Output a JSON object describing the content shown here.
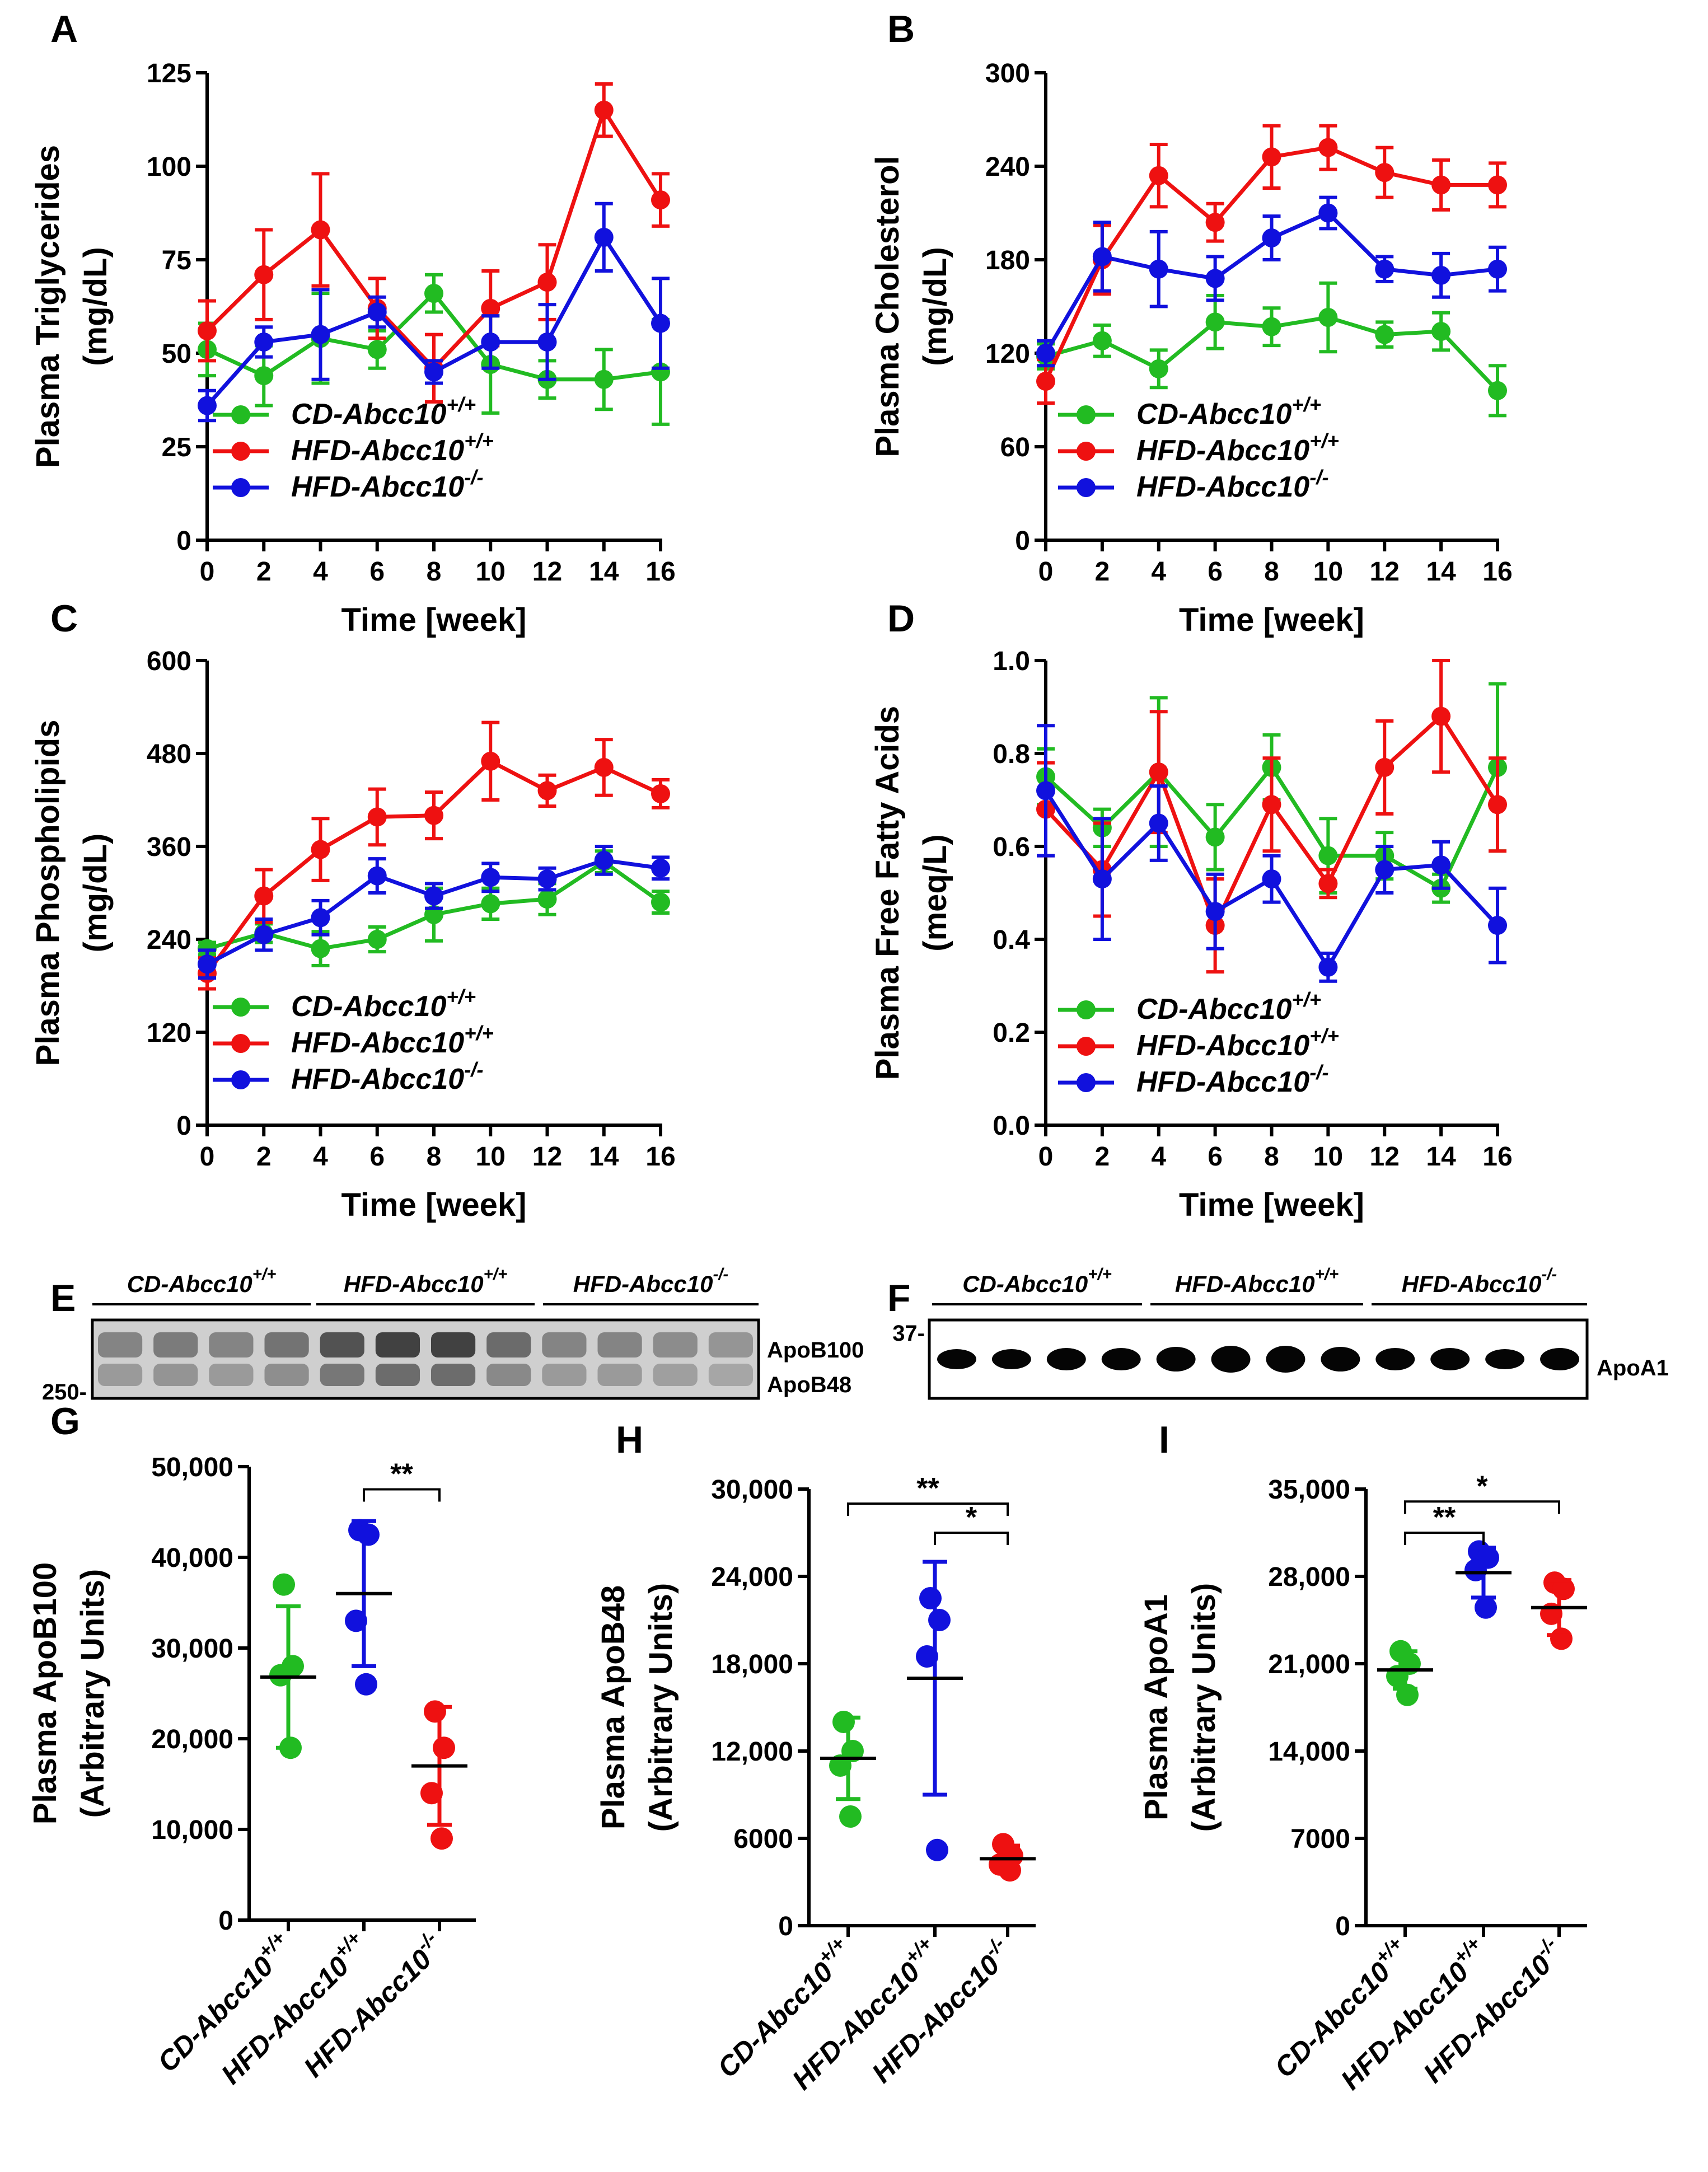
{
  "colors": {
    "green": "#22bb22",
    "red": "#ee1111",
    "blue": "#1111dd",
    "axis": "#000000"
  },
  "chart_data": [
    {
      "panel": "A",
      "type": "line",
      "xlabel": "Time [week]",
      "ylabel": [
        "Plasma Triglycerides",
        "(mg/dL)"
      ],
      "x": [
        0,
        2,
        4,
        6,
        8,
        10,
        12,
        14,
        16
      ],
      "xticks": [
        "0",
        "2",
        "4",
        "6",
        "8",
        "10",
        "12",
        "14",
        "16"
      ],
      "ylim": [
        0,
        125
      ],
      "yticks": [
        {
          "v": 0,
          "t": "0"
        },
        {
          "v": 25,
          "t": "25"
        },
        {
          "v": 50,
          "t": "50"
        },
        {
          "v": 75,
          "t": "75"
        },
        {
          "v": 100,
          "t": "100"
        },
        {
          "v": 125,
          "t": "125"
        }
      ],
      "series": [
        {
          "name": "CD-Abcc10",
          "sup": "+/+",
          "color": "green",
          "values": [
            51,
            44,
            54,
            51,
            66,
            47,
            43,
            43,
            45
          ],
          "err": [
            7,
            8,
            12,
            5,
            5,
            13,
            5,
            8,
            14
          ]
        },
        {
          "name": "HFD-Abcc10",
          "sup": "+/+",
          "color": "red",
          "values": [
            56,
            71,
            83,
            62,
            46,
            62,
            69,
            115,
            91
          ],
          "err": [
            8,
            12,
            15,
            8,
            9,
            10,
            10,
            7,
            7
          ]
        },
        {
          "name": "HFD-Abcc10",
          "sup": "-/-",
          "color": "blue",
          "values": [
            36,
            53,
            55,
            61,
            45,
            53,
            53,
            81,
            58
          ],
          "err": [
            4,
            4,
            12,
            4,
            3,
            7,
            10,
            9,
            12
          ]
        }
      ]
    },
    {
      "panel": "B",
      "type": "line",
      "xlabel": "Time [week]",
      "ylabel": [
        "Plasma Cholesterol",
        "(mg/dL)"
      ],
      "x": [
        0,
        2,
        4,
        6,
        8,
        10,
        12,
        14,
        16
      ],
      "xticks": [
        "0",
        "2",
        "4",
        "6",
        "8",
        "10",
        "12",
        "14",
        "16"
      ],
      "ylim": [
        0,
        300
      ],
      "yticks": [
        {
          "v": 0,
          "t": "0"
        },
        {
          "v": 60,
          "t": "60"
        },
        {
          "v": 120,
          "t": "120"
        },
        {
          "v": 180,
          "t": "180"
        },
        {
          "v": 240,
          "t": "240"
        },
        {
          "v": 300,
          "t": "300"
        }
      ],
      "series": [
        {
          "name": "CD-Abcc10",
          "sup": "+/+",
          "color": "green",
          "values": [
            118,
            128,
            110,
            140,
            137,
            143,
            132,
            134,
            96
          ],
          "err": [
            8,
            10,
            12,
            17,
            12,
            22,
            8,
            12,
            16
          ]
        },
        {
          "name": "HFD-Abcc10",
          "sup": "+/+",
          "color": "red",
          "values": [
            102,
            180,
            234,
            204,
            246,
            252,
            236,
            228,
            228
          ],
          "err": [
            14,
            22,
            20,
            12,
            20,
            14,
            16,
            16,
            14
          ]
        },
        {
          "name": "HFD-Abcc10",
          "sup": "-/-",
          "color": "blue",
          "values": [
            120,
            182,
            174,
            168,
            194,
            210,
            174,
            170,
            174
          ],
          "err": [
            8,
            22,
            24,
            14,
            14,
            10,
            8,
            14,
            14
          ]
        }
      ]
    },
    {
      "panel": "C",
      "type": "line",
      "xlabel": "Time [week]",
      "ylabel": [
        "Plasma Phospholipids",
        "(mg/dL)"
      ],
      "x": [
        0,
        2,
        4,
        6,
        8,
        10,
        12,
        14,
        16
      ],
      "xticks": [
        "0",
        "2",
        "4",
        "6",
        "8",
        "10",
        "12",
        "14",
        "16"
      ],
      "ylim": [
        0,
        600
      ],
      "yticks": [
        {
          "v": 0,
          "t": "0"
        },
        {
          "v": 120,
          "t": "120"
        },
        {
          "v": 240,
          "t": "240"
        },
        {
          "v": 360,
          "t": "360"
        },
        {
          "v": 480,
          "t": "480"
        },
        {
          "v": 600,
          "t": "600"
        }
      ],
      "series": [
        {
          "name": "CD-Abcc10",
          "sup": "+/+",
          "color": "green",
          "values": [
            228,
            248,
            228,
            240,
            272,
            286,
            292,
            340,
            288
          ],
          "err": [
            8,
            12,
            22,
            16,
            34,
            20,
            20,
            14,
            14
          ]
        },
        {
          "name": "HFD-Abcc10",
          "sup": "+/+",
          "color": "red",
          "values": [
            196,
            296,
            356,
            398,
            400,
            470,
            432,
            462,
            428
          ],
          "err": [
            20,
            34,
            40,
            36,
            30,
            50,
            20,
            36,
            18
          ]
        },
        {
          "name": "HFD-Abcc10",
          "sup": "-/-",
          "color": "blue",
          "values": [
            208,
            246,
            268,
            322,
            296,
            320,
            318,
            342,
            332
          ],
          "err": [
            18,
            20,
            22,
            22,
            16,
            18,
            14,
            18,
            14
          ]
        }
      ]
    },
    {
      "panel": "D",
      "type": "line",
      "xlabel": "Time [week]",
      "ylabel": [
        "Plasma Free Fatty Acids",
        "(meq/L)"
      ],
      "x": [
        0,
        2,
        4,
        6,
        8,
        10,
        12,
        14,
        16
      ],
      "xticks": [
        "0",
        "2",
        "4",
        "6",
        "8",
        "10",
        "12",
        "14",
        "16"
      ],
      "ylim": [
        0,
        1.0
      ],
      "yticks": [
        {
          "v": 0,
          "t": "0.0"
        },
        {
          "v": 0.2,
          "t": "0.2"
        },
        {
          "v": 0.4,
          "t": "0.4"
        },
        {
          "v": 0.6,
          "t": "0.6"
        },
        {
          "v": 0.8,
          "t": "0.8"
        },
        {
          "v": 1.0,
          "t": "1.0"
        }
      ],
      "series": [
        {
          "name": "CD-Abcc10",
          "sup": "+/+",
          "color": "green",
          "values": [
            0.75,
            0.64,
            0.76,
            0.62,
            0.77,
            0.58,
            0.58,
            0.51,
            0.77
          ],
          "err": [
            0.06,
            0.04,
            0.16,
            0.07,
            0.07,
            0.08,
            0.05,
            0.03,
            0.18
          ]
        },
        {
          "name": "HFD-Abcc10",
          "sup": "+/+",
          "color": "red",
          "values": [
            0.68,
            0.55,
            0.76,
            0.43,
            0.69,
            0.52,
            0.77,
            0.88,
            0.69
          ],
          "err": [
            0.1,
            0.1,
            0.13,
            0.1,
            0.1,
            0.03,
            0.1,
            0.12,
            0.1
          ]
        },
        {
          "name": "HFD-Abcc10",
          "sup": "-/-",
          "color": "blue",
          "values": [
            0.72,
            0.53,
            0.65,
            0.46,
            0.53,
            0.34,
            0.55,
            0.56,
            0.43
          ],
          "err": [
            0.14,
            0.13,
            0.08,
            0.08,
            0.05,
            0.03,
            0.05,
            0.05,
            0.08
          ]
        }
      ]
    },
    {
      "panel": "G",
      "type": "scatter",
      "ylabel": [
        "Plasma ApoB100",
        "(Arbitrary Units)"
      ],
      "ylim": [
        0,
        50000
      ],
      "yticks": [
        {
          "v": 0,
          "t": "0"
        },
        {
          "v": 10000,
          "t": "10,000"
        },
        {
          "v": 20000,
          "t": "20,000"
        },
        {
          "v": 30000,
          "t": "30,000"
        },
        {
          "v": 40000,
          "t": "40,000"
        },
        {
          "v": 50000,
          "t": "50,000"
        }
      ],
      "groups": [
        {
          "name": "CD-Abcc10",
          "sup": "+/+",
          "color": "green",
          "points": [
            37000,
            28000,
            27000,
            19000
          ],
          "mean": 26800,
          "sd": 7800
        },
        {
          "name": "HFD-Abcc10",
          "sup": "+/+",
          "color": "blue",
          "points": [
            43000,
            42500,
            33000,
            26000
          ],
          "mean": 36000,
          "sd": 8000
        },
        {
          "name": "HFD-Abcc10",
          "sup": "-/-",
          "color": "red",
          "points": [
            23000,
            19000,
            14000,
            9000
          ],
          "mean": 17000,
          "sd": 6500
        }
      ],
      "significance": [
        {
          "from": 1,
          "to": 2,
          "label": "**",
          "y": 47500
        }
      ]
    },
    {
      "panel": "H",
      "type": "scatter",
      "ylabel": [
        "Plasma ApoB48",
        "(Arbitrary Units)"
      ],
      "ylim": [
        0,
        30000
      ],
      "yticks": [
        {
          "v": 0,
          "t": "0"
        },
        {
          "v": 6000,
          "t": "6000"
        },
        {
          "v": 12000,
          "t": "12,000"
        },
        {
          "v": 18000,
          "t": "18,000"
        },
        {
          "v": 24000,
          "t": "24,000"
        },
        {
          "v": 30000,
          "t": "30,000"
        }
      ],
      "groups": [
        {
          "name": "CD-Abcc10",
          "sup": "+/+",
          "color": "green",
          "points": [
            14000,
            12000,
            11000,
            7500
          ],
          "mean": 11500,
          "sd": 2800
        },
        {
          "name": "HFD-Abcc10",
          "sup": "+/+",
          "color": "blue",
          "points": [
            22500,
            21000,
            18500,
            5200
          ],
          "mean": 17000,
          "sd": 8000
        },
        {
          "name": "HFD-Abcc10",
          "sup": "-/-",
          "color": "red",
          "points": [
            5600,
            4800,
            4200,
            3800
          ],
          "mean": 4600,
          "sd": 900
        }
      ],
      "significance": [
        {
          "from": 0,
          "to": 2,
          "label": "**",
          "y": 29000
        },
        {
          "from": 1,
          "to": 2,
          "label": "*",
          "y": 27000
        }
      ]
    },
    {
      "panel": "I",
      "type": "scatter",
      "ylabel": [
        "Plasma ApoA1",
        "(Arbitrary Units)"
      ],
      "ylim": [
        0,
        35000
      ],
      "yticks": [
        {
          "v": 0,
          "t": "0"
        },
        {
          "v": 7000,
          "t": "7000"
        },
        {
          "v": 14000,
          "t": "14,000"
        },
        {
          "v": 21000,
          "t": "21,000"
        },
        {
          "v": 28000,
          "t": "28,000"
        },
        {
          "v": 35000,
          "t": "35,000"
        }
      ],
      "groups": [
        {
          "name": "CD-Abcc10",
          "sup": "+/+",
          "color": "green",
          "points": [
            22000,
            21000,
            20000,
            18500
          ],
          "mean": 20500,
          "sd": 1500
        },
        {
          "name": "HFD-Abcc10",
          "sup": "+/+",
          "color": "blue",
          "points": [
            30000,
            29500,
            28500,
            25500
          ],
          "mean": 28300,
          "sd": 2000
        },
        {
          "name": "HFD-Abcc10",
          "sup": "-/-",
          "color": "red",
          "points": [
            27500,
            27000,
            25000,
            23000
          ],
          "mean": 25500,
          "sd": 2200
        }
      ],
      "significance": [
        {
          "from": 0,
          "to": 2,
          "label": "*",
          "y": 34000
        },
        {
          "from": 0,
          "to": 1,
          "label": "**",
          "y": 31500
        }
      ]
    }
  ],
  "blots": {
    "E": {
      "panel": "E",
      "groups": [
        {
          "name": "CD-Abcc10",
          "sup": "+/+"
        },
        {
          "name": "HFD-Abcc10",
          "sup": "+/+"
        },
        {
          "name": "HFD-Abcc10",
          "sup": "-/-"
        }
      ],
      "band_labels": [
        "ApoB100",
        "ApoB48"
      ],
      "marker": "250-"
    },
    "F": {
      "panel": "F",
      "groups": [
        {
          "name": "CD-Abcc10",
          "sup": "+/+"
        },
        {
          "name": "HFD-Abcc10",
          "sup": "+/+"
        },
        {
          "name": "HFD-Abcc10",
          "sup": "-/-"
        }
      ],
      "band_labels": [
        "ApoA1"
      ],
      "marker": "37-"
    }
  }
}
